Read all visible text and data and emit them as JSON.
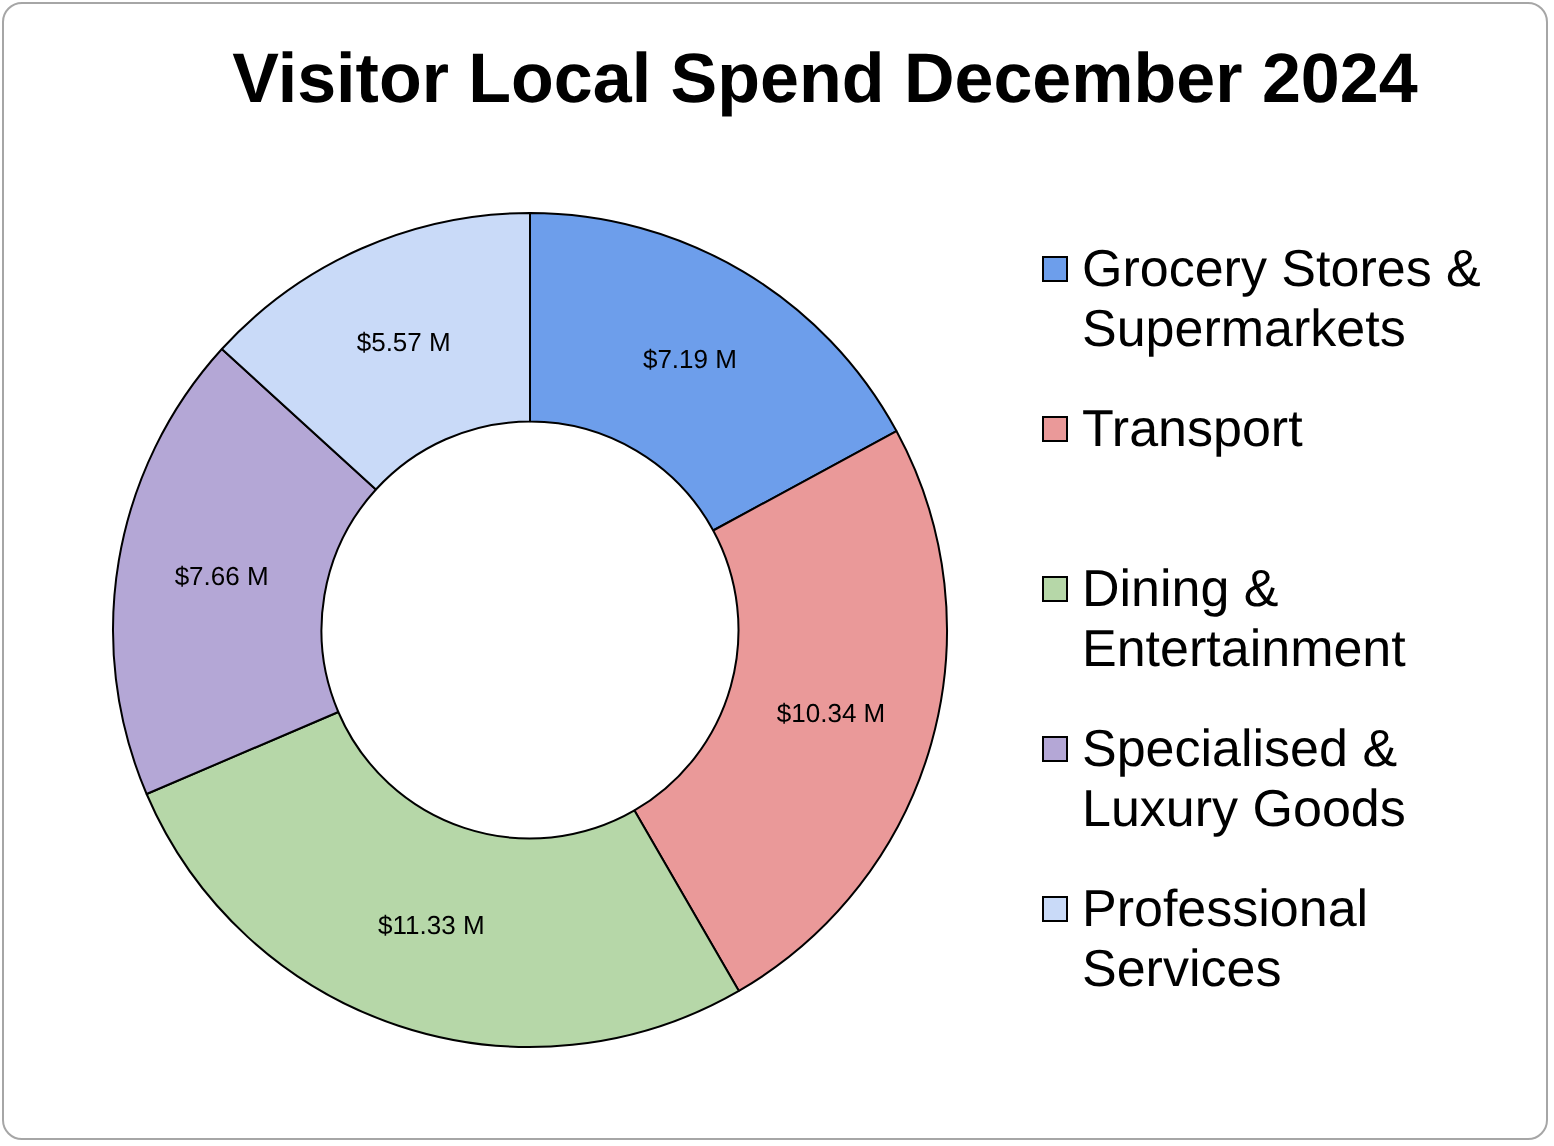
{
  "chart_data": {
    "type": "donut",
    "title": "Visitor Local Spend December 2024",
    "categories": [
      "Grocery Stores & Supermarkets",
      "Transport",
      "Dining & Entertainment",
      "Specialised & Luxury Goods",
      "Professional Services"
    ],
    "values": [
      7.19,
      10.34,
      11.33,
      7.66,
      5.57
    ],
    "value_labels": [
      "$7.19 M",
      "$10.34 M",
      "$11.33 M",
      "$7.66 M",
      "$5.57 M"
    ],
    "colors": [
      "#6d9eeb",
      "#ea9999",
      "#b6d7a8",
      "#b4a7d6",
      "#c9daf8"
    ],
    "legend": "right"
  }
}
